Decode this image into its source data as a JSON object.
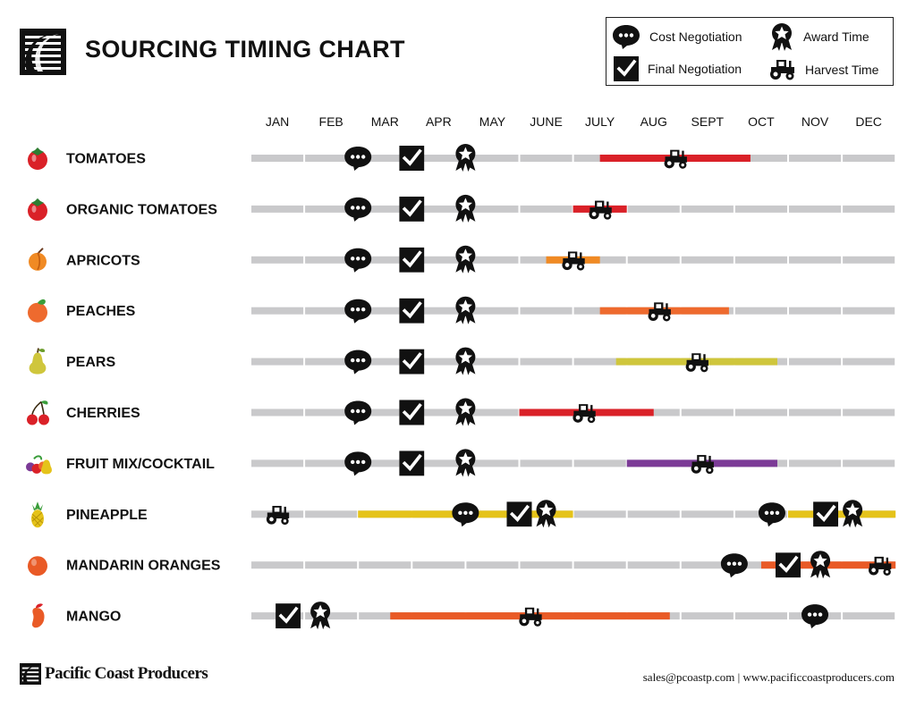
{
  "title": "SOURCING TIMING CHART",
  "legend": {
    "cost_negotiation": "Cost Negotiation",
    "final_negotiation": "Final Negotiation",
    "award_time": "Award Time",
    "harvest_time": "Harvest Time"
  },
  "footer": {
    "brand": "Pacific Coast Producers",
    "email": "sales@pcoastp.com",
    "separator": "|",
    "website": "www.pacificcoastproducers.com"
  },
  "colors": {
    "track": "#c9c9cb",
    "red": "#da2128",
    "orange": "#ee6a2e",
    "lime": "#cfc63c",
    "purple": "#7b3a96",
    "yellow": "#e5c31a",
    "orange_dark": "#e95a26",
    "icon": "#111111"
  },
  "chart_data": {
    "type": "timeline",
    "months": [
      "JAN",
      "FEB",
      "MAR",
      "APR",
      "MAY",
      "JUNE",
      "JULY",
      "AUG",
      "SEPT",
      "OCT",
      "NOV",
      "DEC"
    ],
    "xlim": [
      0,
      12
    ],
    "rows": [
      {
        "name": "TOMATOES",
        "icon": "tomato-icon",
        "icon_color": "#da2128",
        "bars": [
          {
            "start": 6.5,
            "end": 9.3,
            "color": "#da2128"
          }
        ],
        "markers": [
          {
            "type": "cost",
            "x": 2.0
          },
          {
            "type": "final",
            "x": 3.0
          },
          {
            "type": "award",
            "x": 4.0
          },
          {
            "type": "harvest",
            "x": 7.9
          }
        ]
      },
      {
        "name": "ORGANIC TOMATOES",
        "icon": "tomato-icon",
        "icon_color": "#da2128",
        "bars": [
          {
            "start": 6.0,
            "end": 7.0,
            "color": "#da2128"
          }
        ],
        "markers": [
          {
            "type": "cost",
            "x": 2.0
          },
          {
            "type": "final",
            "x": 3.0
          },
          {
            "type": "award",
            "x": 4.0
          },
          {
            "type": "harvest",
            "x": 6.5
          }
        ]
      },
      {
        "name": "APRICOTS",
        "icon": "apricot-icon",
        "icon_color": "#f08a24",
        "bars": [
          {
            "start": 5.5,
            "end": 6.5,
            "color": "#f08a24"
          }
        ],
        "markers": [
          {
            "type": "cost",
            "x": 2.0
          },
          {
            "type": "final",
            "x": 3.0
          },
          {
            "type": "award",
            "x": 4.0
          },
          {
            "type": "harvest",
            "x": 6.0
          }
        ]
      },
      {
        "name": "PEACHES",
        "icon": "peach-icon",
        "icon_color": "#ee6a2e",
        "bars": [
          {
            "start": 6.5,
            "end": 8.9,
            "color": "#ee6a2e"
          }
        ],
        "markers": [
          {
            "type": "cost",
            "x": 2.0
          },
          {
            "type": "final",
            "x": 3.0
          },
          {
            "type": "award",
            "x": 4.0
          },
          {
            "type": "harvest",
            "x": 7.6
          }
        ]
      },
      {
        "name": "PEARS",
        "icon": "pear-icon",
        "icon_color": "#cfc63c",
        "bars": [
          {
            "start": 6.8,
            "end": 9.8,
            "color": "#cfc63c"
          }
        ],
        "markers": [
          {
            "type": "cost",
            "x": 2.0
          },
          {
            "type": "final",
            "x": 3.0
          },
          {
            "type": "award",
            "x": 4.0
          },
          {
            "type": "harvest",
            "x": 8.3
          }
        ]
      },
      {
        "name": "CHERRIES",
        "icon": "cherry-icon",
        "icon_color": "#da2128",
        "bars": [
          {
            "start": 5.0,
            "end": 7.5,
            "color": "#da2128"
          }
        ],
        "markers": [
          {
            "type": "cost",
            "x": 2.0
          },
          {
            "type": "final",
            "x": 3.0
          },
          {
            "type": "award",
            "x": 4.0
          },
          {
            "type": "harvest",
            "x": 6.2
          }
        ]
      },
      {
        "name": "FRUIT MIX/COCKTAIL",
        "icon": "fruit-mix-icon",
        "icon_color": "#7b3a96",
        "bars": [
          {
            "start": 7.0,
            "end": 9.8,
            "color": "#7b3a96"
          }
        ],
        "markers": [
          {
            "type": "cost",
            "x": 2.0
          },
          {
            "type": "final",
            "x": 3.0
          },
          {
            "type": "award",
            "x": 4.0
          },
          {
            "type": "harvest",
            "x": 8.4
          }
        ]
      },
      {
        "name": "PINEAPPLE",
        "icon": "pineapple-icon",
        "icon_color": "#e5c31a",
        "bars": [
          {
            "start": 2.0,
            "end": 6.0,
            "color": "#e5c31a"
          },
          {
            "start": 10.0,
            "end": 12.0,
            "color": "#e5c31a"
          }
        ],
        "markers": [
          {
            "type": "harvest",
            "x": 0.5
          },
          {
            "type": "cost",
            "x": 4.0
          },
          {
            "type": "final",
            "x": 5.0
          },
          {
            "type": "award",
            "x": 5.5
          },
          {
            "type": "cost",
            "x": 9.7
          },
          {
            "type": "final",
            "x": 10.7
          },
          {
            "type": "award",
            "x": 11.2
          }
        ]
      },
      {
        "name": "MANDARIN ORANGES",
        "icon": "orange-icon",
        "icon_color": "#e95a26",
        "bars": [
          {
            "start": 9.5,
            "end": 12.0,
            "color": "#e95a26"
          }
        ],
        "markers": [
          {
            "type": "cost",
            "x": 9.0
          },
          {
            "type": "final",
            "x": 10.0
          },
          {
            "type": "award",
            "x": 10.6
          },
          {
            "type": "harvest",
            "x": 11.7
          }
        ]
      },
      {
        "name": "MANGO",
        "icon": "mango-icon",
        "icon_color": "#e95a26",
        "bars": [
          {
            "start": 2.6,
            "end": 7.8,
            "color": "#e95a26"
          }
        ],
        "markers": [
          {
            "type": "final",
            "x": 0.7
          },
          {
            "type": "award",
            "x": 1.3
          },
          {
            "type": "harvest",
            "x": 5.2
          },
          {
            "type": "cost",
            "x": 10.5
          }
        ]
      }
    ]
  }
}
